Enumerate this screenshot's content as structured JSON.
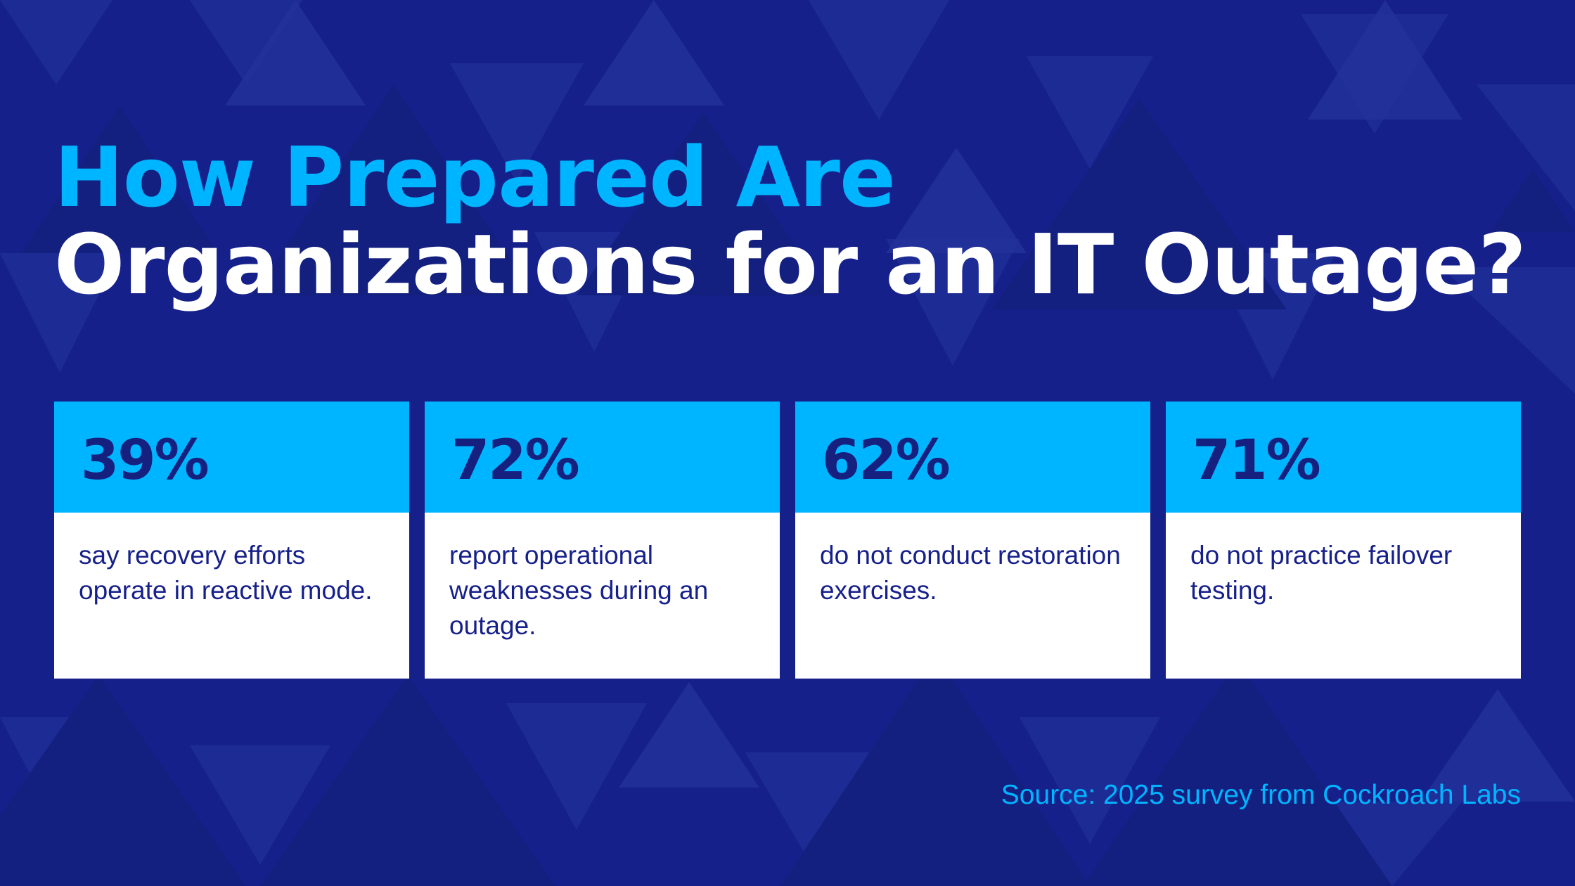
{
  "title": {
    "line1": "How Prepared Are",
    "line2": "Organizations for an IT Outage?"
  },
  "stats": [
    {
      "value": "39%",
      "text": "say recovery efforts operate in reactive mode."
    },
    {
      "value": "72%",
      "text": "report operational weaknesses during an outage."
    },
    {
      "value": "62%",
      "text": "do not conduct restoration exercises."
    },
    {
      "value": "71%",
      "text": "do not practice failover testing."
    }
  ],
  "source": "Source: 2025 survey from Cockroach Labs",
  "colors": {
    "background": "#16208a",
    "accent": "#00b5ff",
    "card": "#ffffff",
    "stat_text": "#15207f"
  }
}
